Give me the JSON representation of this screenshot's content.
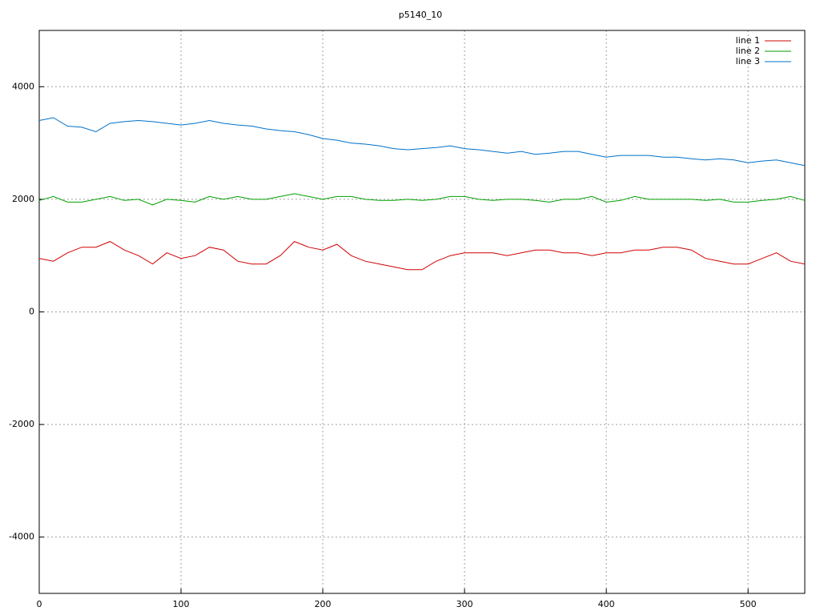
{
  "chart_data": {
    "type": "line",
    "title": "p5140_10",
    "x": [
      0,
      10,
      20,
      30,
      40,
      50,
      60,
      70,
      80,
      90,
      100,
      110,
      120,
      130,
      140,
      150,
      160,
      170,
      180,
      190,
      200,
      210,
      220,
      230,
      240,
      250,
      260,
      270,
      280,
      290,
      300,
      310,
      320,
      330,
      340,
      350,
      360,
      370,
      380,
      390,
      400,
      410,
      420,
      430,
      440,
      450,
      460,
      470,
      480,
      490,
      500,
      510,
      520,
      530,
      540
    ],
    "series": [
      {
        "name": "line 1",
        "color": "#d00000",
        "values": [
          950,
          900,
          1050,
          1150,
          1150,
          1250,
          1100,
          1000,
          850,
          1050,
          950,
          1000,
          1150,
          1100,
          900,
          850,
          850,
          1000,
          1250,
          1150,
          1100,
          1200,
          1000,
          900,
          850,
          800,
          750,
          750,
          900,
          1000,
          1050,
          1050,
          1050,
          1000,
          1050,
          1100,
          1100,
          1050,
          1050,
          1000,
          1050,
          1050,
          1100,
          1100,
          1150,
          1150,
          1100,
          950,
          900,
          850,
          850,
          950,
          1050,
          900,
          850
        ]
      },
      {
        "name": "line 2",
        "color": "#00a000",
        "values": [
          1980,
          2050,
          1950,
          1950,
          2000,
          2050,
          1980,
          2000,
          1900,
          2000,
          1980,
          1950,
          2050,
          2000,
          2050,
          2000,
          2000,
          2050,
          2100,
          2050,
          2000,
          2050,
          2050,
          2000,
          1980,
          1980,
          2000,
          1980,
          2000,
          2050,
          2050,
          2000,
          1980,
          2000,
          2000,
          1980,
          1950,
          2000,
          2000,
          2050,
          1950,
          1980,
          2050,
          2000,
          2000,
          2000,
          2000,
          1980,
          2000,
          1950,
          1950,
          1980,
          2000,
          2050,
          1980
        ]
      },
      {
        "name": "line 3",
        "color": "#0070c8",
        "values": [
          3400,
          3450,
          3300,
          3280,
          3200,
          3350,
          3380,
          3400,
          3380,
          3350,
          3320,
          3350,
          3400,
          3350,
          3320,
          3300,
          3250,
          3220,
          3200,
          3150,
          3080,
          3050,
          3000,
          2980,
          2950,
          2900,
          2880,
          2900,
          2920,
          2950,
          2900,
          2880,
          2850,
          2820,
          2850,
          2800,
          2820,
          2850,
          2850,
          2800,
          2750,
          2780,
          2780,
          2780,
          2750,
          2750,
          2720,
          2700,
          2720,
          2700,
          2650,
          2680,
          2700,
          2650,
          2600
        ]
      }
    ],
    "xlim": [
      0,
      540
    ],
    "ylim": [
      -5000,
      5000
    ],
    "xticks": [
      0,
      100,
      200,
      300,
      400,
      500
    ],
    "yticks": [
      -4000,
      -2000,
      0,
      2000,
      4000
    ],
    "grid": true,
    "legend": "top-right"
  }
}
